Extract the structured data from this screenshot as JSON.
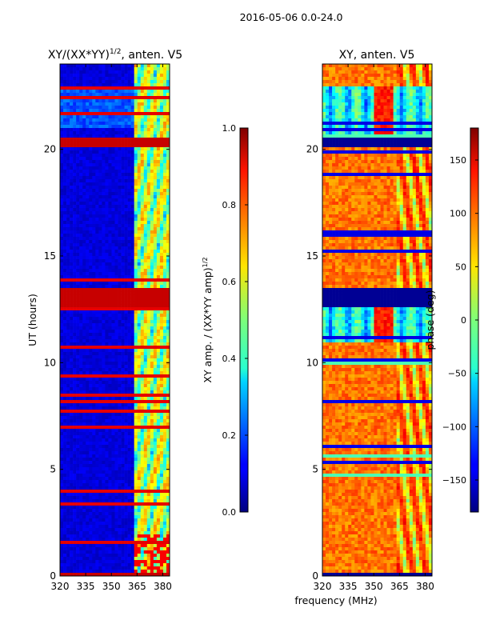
{
  "suptitle": "2016-05-06 0.0-24.0",
  "xlabel_shared": "frequency (MHz)",
  "chart_data": [
    {
      "type": "heatmap",
      "title_main": "XY/(XX*YY)",
      "title_sup": "1/2",
      "title_tail": ", anten. V5",
      "ylabel": "UT (hours)",
      "xlim": [
        320,
        384
      ],
      "ylim": [
        0,
        24
      ],
      "xticks": [
        320,
        335,
        350,
        365,
        380
      ],
      "yticks": [
        0,
        5,
        10,
        15,
        20
      ],
      "colorbar": {
        "label": "XY amp. / (XX*YY amp)",
        "label_sup": "1/2",
        "range": [
          0.0,
          1.0
        ],
        "ticks": [
          "0.0",
          "0.2",
          "0.4",
          "0.6",
          "0.8",
          "1.0"
        ],
        "tick_values": [
          0.0,
          0.2,
          0.4,
          0.6,
          0.8,
          1.0
        ]
      },
      "saturated_bands_hours": [
        [
          0.0,
          0.15
        ],
        [
          12.6,
          13.5
        ],
        [
          20.1,
          20.6
        ]
      ]
    },
    {
      "type": "heatmap",
      "title": "XY, anten. V5",
      "xlim": [
        320,
        384
      ],
      "ylim": [
        0,
        24
      ],
      "xticks": [
        320,
        335,
        350,
        365,
        380
      ],
      "yticks": [
        0,
        5,
        10,
        15,
        20
      ],
      "colorbar": {
        "label": "phase (deg)",
        "range": [
          -180,
          180
        ],
        "ticks": [
          "−150",
          "−100",
          "−50",
          "0",
          "50",
          "100",
          "150"
        ],
        "tick_values": [
          -150,
          -100,
          -50,
          0,
          50,
          100,
          150
        ]
      },
      "low_bands_hours": [
        [
          0.0,
          0.2
        ],
        [
          12.6,
          13.5
        ],
        [
          20.1,
          20.6
        ]
      ]
    }
  ]
}
